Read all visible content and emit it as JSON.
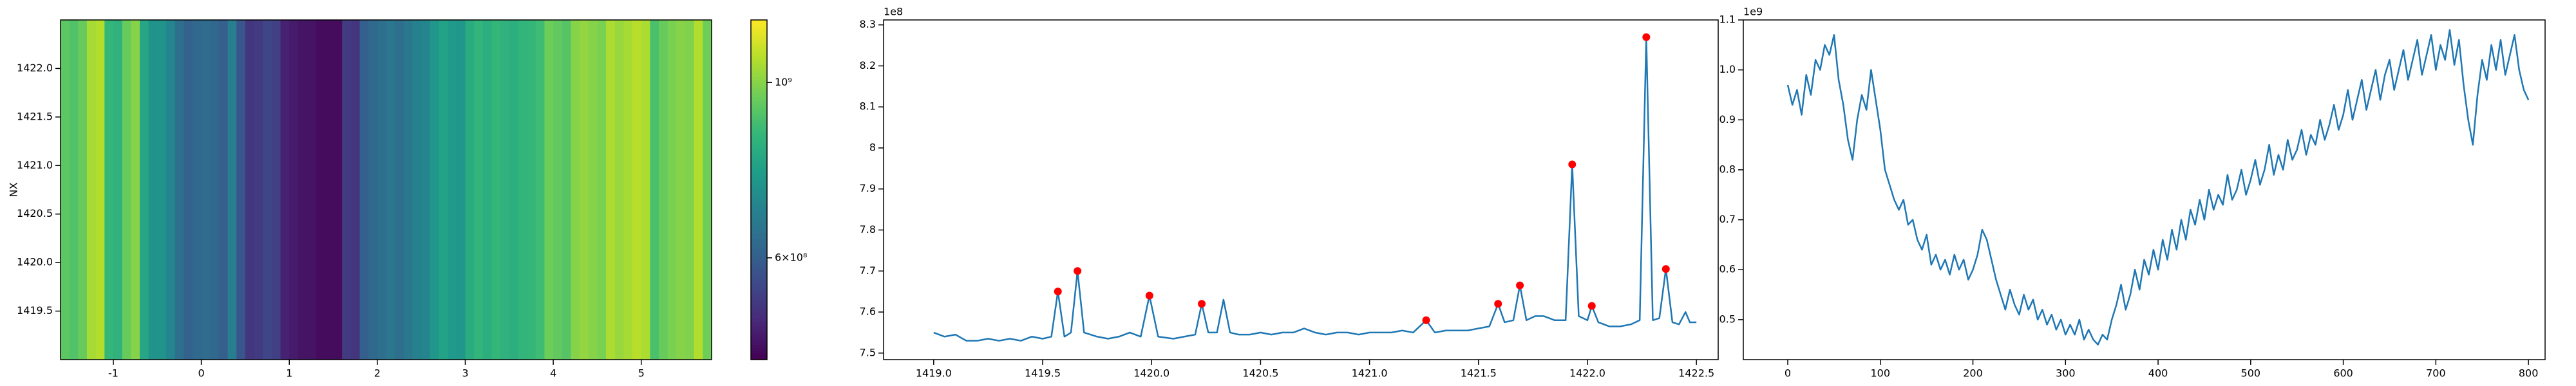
{
  "chart_data": [
    {
      "type": "heatmap",
      "ylabel": "NX",
      "colormap": "viridis",
      "x": [
        -1.55,
        -1.45,
        -1.35,
        -1.25,
        -1.15,
        -1.05,
        -0.95,
        -0.85,
        -0.75,
        -0.65,
        -0.55,
        -0.45,
        -0.35,
        -0.25,
        -0.15,
        -0.05,
        0.05,
        0.15,
        0.25,
        0.35,
        0.45,
        0.55,
        0.65,
        0.75,
        0.85,
        0.95,
        1.05,
        1.15,
        1.25,
        1.35,
        1.45,
        1.55,
        1.65,
        1.75,
        1.85,
        1.95,
        2.05,
        2.15,
        2.25,
        2.35,
        2.45,
        2.55,
        2.65,
        2.75,
        2.85,
        2.95,
        3.05,
        3.15,
        3.25,
        3.35,
        3.45,
        3.55,
        3.65,
        3.75,
        3.85,
        3.95,
        4.05,
        4.15,
        4.25,
        4.35,
        4.45,
        4.55,
        4.65,
        4.75,
        4.85,
        4.95,
        5.05,
        5.15,
        5.25,
        5.35,
        5.45,
        5.55,
        5.65,
        5.75
      ],
      "values": [
        930000000.0,
        910000000.0,
        950000000.0,
        1050000000.0,
        1070000000.0,
        860000000.0,
        840000000.0,
        950000000.0,
        1000000000.0,
        800000000.0,
        740000000.0,
        740000000.0,
        700000000.0,
        640000000.0,
        610000000.0,
        620000000.0,
        630000000.0,
        620000000.0,
        600000000.0,
        680000000.0,
        580000000.0,
        520000000.0,
        530000000.0,
        550000000.0,
        540000000.0,
        490000000.0,
        480000000.0,
        470000000.0,
        470000000.0,
        460000000.0,
        460000000.0,
        460000000.0,
        530000000.0,
        520000000.0,
        600000000.0,
        620000000.0,
        640000000.0,
        660000000.0,
        640000000.0,
        660000000.0,
        690000000.0,
        700000000.0,
        750000000.0,
        790000000.0,
        760000000.0,
        750000000.0,
        820000000.0,
        850000000.0,
        830000000.0,
        860000000.0,
        840000000.0,
        830000000.0,
        850000000.0,
        860000000.0,
        880000000.0,
        960000000.0,
        940000000.0,
        920000000.0,
        1000000000.0,
        1020000000.0,
        1000000000.0,
        980000000.0,
        1060000000.0,
        1030000000.0,
        1050000000.0,
        1080000000.0,
        1060000000.0,
        900000000.0,
        950000000.0,
        980000000.0,
        1000000000.0,
        990000000.0,
        1070000000.0,
        960000000.0
      ],
      "xlim": [
        -1.6,
        5.8
      ],
      "ylim": [
        1419.0,
        1422.5
      ],
      "xticks": [
        -1,
        0,
        1,
        2,
        3,
        4,
        5
      ],
      "yticks": [
        1419.5,
        {
          "value": 1420,
          "label": "1420.0"
        },
        1420.5,
        {
          "value": 1421,
          "label": "1421.0"
        },
        1421.5,
        {
          "value": 1422,
          "label": "1422.0"
        }
      ],
      "colorbar": {
        "clim": [
          446000000.0,
          1200000000.0
        ],
        "log": true,
        "ticks": [
          {
            "value": 600000000,
            "label": "6×10⁸"
          },
          {
            "value": 1000000000,
            "label": "10⁹"
          }
        ]
      }
    },
    {
      "type": "line",
      "offset_text": "1e8",
      "series": [
        {
          "type": "line",
          "color": "#1f77b4",
          "x": [
            1419.0,
            1419.05,
            1419.1,
            1419.15,
            1419.2,
            1419.25,
            1419.3,
            1419.35,
            1419.4,
            1419.45,
            1419.5,
            1419.54,
            1419.57,
            1419.6,
            1419.63,
            1419.66,
            1419.69,
            1419.75,
            1419.8,
            1419.85,
            1419.9,
            1419.95,
            1419.99,
            1420.03,
            1420.1,
            1420.15,
            1420.2,
            1420.23,
            1420.26,
            1420.3,
            1420.33,
            1420.36,
            1420.4,
            1420.45,
            1420.5,
            1420.55,
            1420.6,
            1420.65,
            1420.7,
            1420.75,
            1420.8,
            1420.85,
            1420.9,
            1420.95,
            1421.0,
            1421.05,
            1421.1,
            1421.15,
            1421.2,
            1421.26,
            1421.3,
            1421.35,
            1421.4,
            1421.45,
            1421.5,
            1421.55,
            1421.59,
            1421.62,
            1421.66,
            1421.69,
            1421.72,
            1421.76,
            1421.8,
            1421.85,
            1421.9,
            1421.93,
            1421.96,
            1422.0,
            1422.02,
            1422.05,
            1422.1,
            1422.15,
            1422.2,
            1422.24,
            1422.27,
            1422.3,
            1422.33,
            1422.36,
            1422.39,
            1422.42,
            1422.45,
            1422.47,
            1422.5
          ],
          "values": [
            7.55,
            7.54,
            7.545,
            7.53,
            7.53,
            7.535,
            7.53,
            7.535,
            7.53,
            7.54,
            7.535,
            7.54,
            7.65,
            7.54,
            7.55,
            7.7,
            7.55,
            7.54,
            7.535,
            7.54,
            7.55,
            7.54,
            7.64,
            7.54,
            7.535,
            7.54,
            7.545,
            7.62,
            7.55,
            7.55,
            7.63,
            7.55,
            7.545,
            7.545,
            7.55,
            7.545,
            7.55,
            7.55,
            7.56,
            7.55,
            7.545,
            7.55,
            7.55,
            7.545,
            7.55,
            7.55,
            7.55,
            7.555,
            7.55,
            7.58,
            7.55,
            7.555,
            7.555,
            7.555,
            7.56,
            7.565,
            7.62,
            7.575,
            7.58,
            7.665,
            7.58,
            7.59,
            7.59,
            7.58,
            7.58,
            7.96,
            7.59,
            7.58,
            7.615,
            7.575,
            7.565,
            7.565,
            7.57,
            7.58,
            8.27,
            7.58,
            7.585,
            7.705,
            7.575,
            7.57,
            7.6,
            7.575,
            7.575
          ]
        },
        {
          "type": "scatter",
          "color": "#ff0000",
          "x": [
            1419.57,
            1419.66,
            1419.99,
            1420.23,
            1421.26,
            1421.59,
            1421.69,
            1421.93,
            1422.02,
            1422.27,
            1422.36
          ],
          "values": [
            7.65,
            7.7,
            7.64,
            7.62,
            7.58,
            7.62,
            7.665,
            7.96,
            7.615,
            8.27,
            7.705
          ]
        }
      ],
      "xlim": [
        1418.77,
        1422.6
      ],
      "ylim": [
        7.484,
        8.312
      ],
      "xticks": [
        {
          "value": 1419,
          "label": "1419.0"
        },
        1419.5,
        {
          "value": 1420,
          "label": "1420.0"
        },
        1420.5,
        {
          "value": 1421,
          "label": "1421.0"
        },
        1421.5,
        {
          "value": 1422,
          "label": "1422.0"
        },
        1422.5
      ],
      "yticks": [
        7.5,
        7.6,
        7.7,
        7.8,
        7.9,
        8.0,
        8.1,
        8.2,
        8.3
      ]
    },
    {
      "type": "line",
      "offset_text": "1e9",
      "series": [
        {
          "type": "line",
          "color": "#1f77b4",
          "x": [
            0,
            5,
            10,
            15,
            20,
            25,
            30,
            35,
            40,
            45,
            50,
            55,
            60,
            65,
            70,
            75,
            80,
            85,
            90,
            95,
            100,
            105,
            110,
            115,
            120,
            125,
            130,
            135,
            140,
            145,
            150,
            155,
            160,
            165,
            170,
            175,
            180,
            185,
            190,
            195,
            200,
            205,
            210,
            215,
            220,
            225,
            230,
            235,
            240,
            245,
            250,
            255,
            260,
            265,
            270,
            275,
            280,
            285,
            290,
            295,
            300,
            305,
            310,
            315,
            320,
            325,
            330,
            335,
            340,
            345,
            350,
            355,
            360,
            365,
            370,
            375,
            380,
            385,
            390,
            395,
            400,
            405,
            410,
            415,
            420,
            425,
            430,
            435,
            440,
            445,
            450,
            455,
            460,
            465,
            470,
            475,
            480,
            485,
            490,
            495,
            500,
            505,
            510,
            515,
            520,
            525,
            530,
            535,
            540,
            545,
            550,
            555,
            560,
            565,
            570,
            575,
            580,
            585,
            590,
            595,
            600,
            605,
            610,
            615,
            620,
            625,
            630,
            635,
            640,
            645,
            650,
            655,
            660,
            665,
            670,
            675,
            680,
            685,
            690,
            695,
            700,
            705,
            710,
            715,
            720,
            725,
            730,
            735,
            740,
            745,
            750,
            755,
            760,
            765,
            770,
            775,
            780,
            785,
            790,
            795,
            800
          ],
          "values": [
            0.97,
            0.93,
            0.96,
            0.91,
            0.99,
            0.95,
            1.02,
            1.0,
            1.05,
            1.03,
            1.07,
            0.98,
            0.93,
            0.86,
            0.82,
            0.9,
            0.95,
            0.92,
            1.0,
            0.94,
            0.88,
            0.8,
            0.77,
            0.74,
            0.72,
            0.74,
            0.69,
            0.7,
            0.66,
            0.64,
            0.67,
            0.61,
            0.63,
            0.6,
            0.62,
            0.59,
            0.63,
            0.6,
            0.62,
            0.58,
            0.6,
            0.63,
            0.68,
            0.66,
            0.62,
            0.58,
            0.55,
            0.52,
            0.56,
            0.53,
            0.51,
            0.55,
            0.52,
            0.54,
            0.5,
            0.52,
            0.49,
            0.51,
            0.48,
            0.5,
            0.47,
            0.49,
            0.47,
            0.5,
            0.46,
            0.48,
            0.46,
            0.45,
            0.47,
            0.46,
            0.5,
            0.53,
            0.57,
            0.52,
            0.55,
            0.6,
            0.56,
            0.62,
            0.59,
            0.64,
            0.6,
            0.66,
            0.62,
            0.68,
            0.64,
            0.7,
            0.66,
            0.72,
            0.69,
            0.74,
            0.7,
            0.76,
            0.72,
            0.75,
            0.73,
            0.79,
            0.74,
            0.76,
            0.8,
            0.75,
            0.78,
            0.82,
            0.77,
            0.8,
            0.85,
            0.79,
            0.83,
            0.8,
            0.86,
            0.82,
            0.84,
            0.88,
            0.83,
            0.87,
            0.85,
            0.9,
            0.86,
            0.89,
            0.93,
            0.88,
            0.91,
            0.96,
            0.9,
            0.94,
            0.98,
            0.92,
            0.96,
            1.0,
            0.94,
            0.99,
            1.02,
            0.96,
            1.0,
            1.04,
            0.98,
            1.02,
            1.06,
            0.99,
            1.03,
            1.07,
            1.0,
            1.05,
            1.02,
            1.08,
            1.01,
            1.06,
            0.97,
            0.9,
            0.85,
            0.95,
            1.02,
            0.98,
            1.05,
            1.0,
            1.06,
            0.99,
            1.03,
            1.07,
            1.0,
            0.96,
            0.94
          ]
        }
      ],
      "xlim": [
        -48,
        818
      ],
      "ylim": [
        0.42,
        1.1
      ],
      "xticks": [
        0,
        100,
        200,
        300,
        400,
        500,
        600,
        700,
        800
      ],
      "yticks": [
        0.5,
        0.6,
        0.7,
        0.8,
        0.9,
        {
          "value": 1,
          "label": "1.0"
        },
        1.1
      ]
    }
  ]
}
